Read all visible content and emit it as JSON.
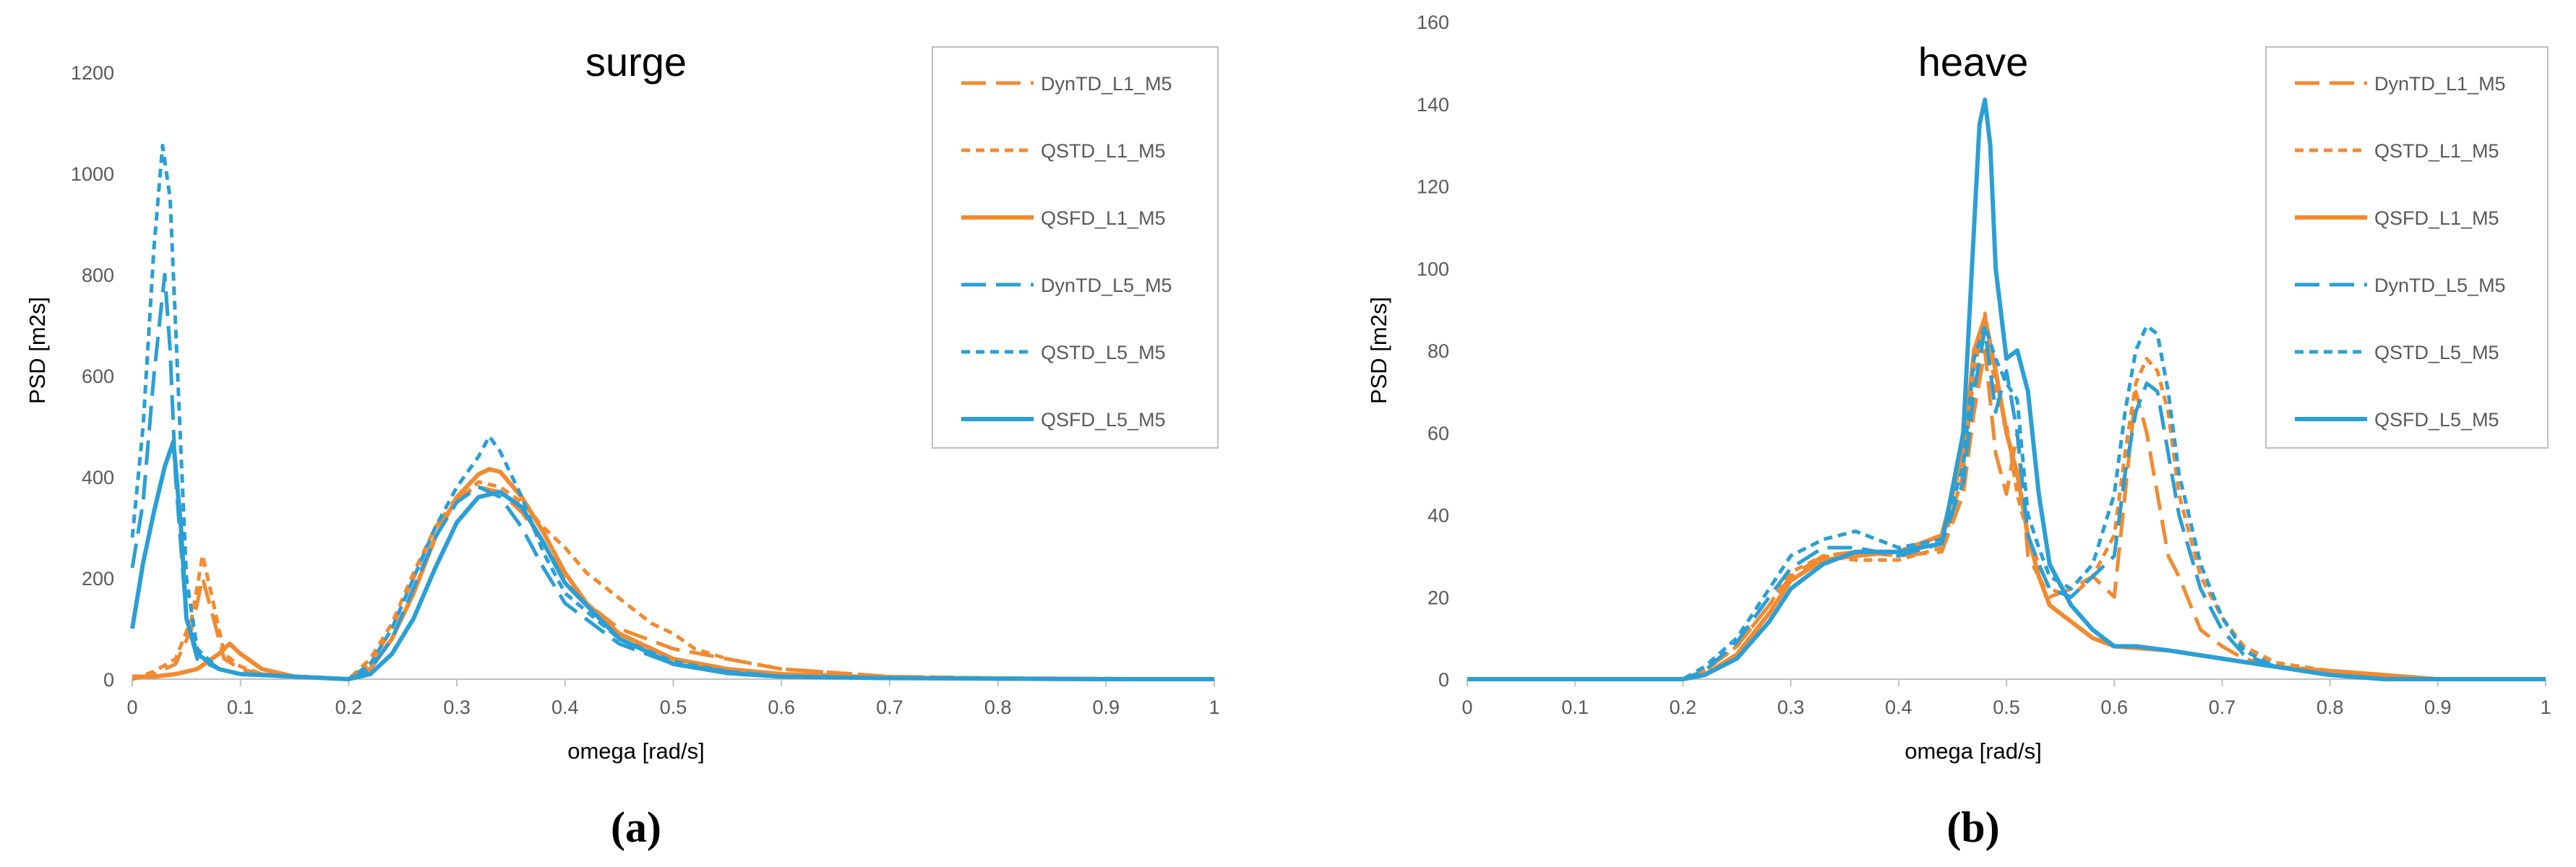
{
  "colors": {
    "orange": "#f28a30",
    "blue": "#2a9fd6",
    "axis": "#bfbfbf",
    "text": "#595959"
  },
  "chart_data": [
    {
      "type": "line",
      "panel_label": "(a)",
      "title": "surge",
      "xlabel": "omega [rad/s]",
      "ylabel": "PSD [m2s]",
      "xlim": [
        0,
        1
      ],
      "ylim": [
        0,
        1300
      ],
      "xticks": [
        0,
        0.1,
        0.2,
        0.3,
        0.4,
        0.5,
        0.6,
        0.7,
        0.8,
        0.9,
        1
      ],
      "xtick_labels": [
        "0",
        "0.1",
        "0.2",
        "0.3",
        "0.4",
        "0.5",
        "0.6",
        "0.7",
        "0.8",
        "0.9",
        "1"
      ],
      "yticks": [
        0,
        200,
        400,
        600,
        800,
        1000,
        1200
      ],
      "ytick_labels": [
        "0",
        "200",
        "400",
        "600",
        "800",
        "1000",
        "1200"
      ],
      "grid": false,
      "legend": "top-right",
      "series": [
        {
          "name": "DynTD_L1_M5",
          "color": "orange",
          "style": "longdash",
          "x": [
            0,
            0.02,
            0.04,
            0.055,
            0.065,
            0.075,
            0.085,
            0.1,
            0.12,
            0.15,
            0.2,
            0.22,
            0.24,
            0.26,
            0.28,
            0.3,
            0.32,
            0.34,
            0.36,
            0.38,
            0.4,
            0.42,
            0.45,
            0.5,
            0.55,
            0.6,
            0.7,
            0.8,
            0.9,
            1
          ],
          "y": [
            0,
            10,
            30,
            100,
            200,
            120,
            40,
            20,
            10,
            5,
            0,
            30,
            100,
            200,
            300,
            360,
            380,
            370,
            330,
            270,
            200,
            150,
            100,
            60,
            40,
            20,
            5,
            2,
            1,
            0
          ]
        },
        {
          "name": "QSTD_L1_M5",
          "color": "orange",
          "style": "shortdash",
          "x": [
            0,
            0.02,
            0.04,
            0.055,
            0.065,
            0.075,
            0.085,
            0.1,
            0.12,
            0.15,
            0.2,
            0.22,
            0.24,
            0.26,
            0.28,
            0.3,
            0.32,
            0.34,
            0.36,
            0.38,
            0.4,
            0.42,
            0.45,
            0.48,
            0.5,
            0.52,
            0.55,
            0.6,
            0.7,
            0.8,
            0.9,
            1
          ],
          "y": [
            0,
            15,
            40,
            120,
            245,
            150,
            50,
            25,
            10,
            5,
            0,
            40,
            110,
            210,
            300,
            350,
            390,
            380,
            350,
            300,
            260,
            210,
            160,
            110,
            90,
            60,
            40,
            20,
            5,
            2,
            1,
            0
          ]
        },
        {
          "name": "QSFD_L1_M5",
          "color": "orange",
          "style": "solid",
          "x": [
            0,
            0.02,
            0.04,
            0.06,
            0.08,
            0.09,
            0.1,
            0.12,
            0.15,
            0.2,
            0.22,
            0.24,
            0.26,
            0.28,
            0.3,
            0.32,
            0.33,
            0.34,
            0.36,
            0.38,
            0.4,
            0.42,
            0.45,
            0.5,
            0.55,
            0.6,
            0.7,
            0.8,
            0.9,
            1
          ],
          "y": [
            5,
            5,
            10,
            20,
            50,
            70,
            50,
            20,
            5,
            0,
            20,
            80,
            170,
            280,
            360,
            405,
            415,
            410,
            360,
            290,
            210,
            150,
            90,
            40,
            20,
            10,
            3,
            1,
            0,
            0
          ]
        },
        {
          "name": "DynTD_L5_M5",
          "color": "blue",
          "style": "longdash",
          "x": [
            0,
            0.01,
            0.02,
            0.03,
            0.035,
            0.04,
            0.05,
            0.06,
            0.08,
            0.1,
            0.15,
            0.2,
            0.22,
            0.24,
            0.26,
            0.28,
            0.3,
            0.32,
            0.34,
            0.36,
            0.38,
            0.4,
            0.45,
            0.5,
            0.55,
            0.6,
            0.7,
            0.8,
            0.9,
            1
          ],
          "y": [
            220,
            350,
            600,
            800,
            650,
            400,
            120,
            40,
            20,
            10,
            5,
            0,
            20,
            80,
            180,
            280,
            350,
            380,
            360,
            300,
            220,
            150,
            70,
            30,
            15,
            5,
            2,
            1,
            0,
            0
          ]
        },
        {
          "name": "QSTD_L5_M5",
          "color": "blue",
          "style": "shortdash",
          "x": [
            0,
            0.01,
            0.02,
            0.028,
            0.035,
            0.042,
            0.05,
            0.06,
            0.08,
            0.1,
            0.15,
            0.2,
            0.22,
            0.24,
            0.26,
            0.28,
            0.3,
            0.32,
            0.33,
            0.34,
            0.36,
            0.38,
            0.4,
            0.45,
            0.5,
            0.55,
            0.6,
            0.7,
            0.8,
            0.9,
            1
          ],
          "y": [
            280,
            500,
            850,
            1055,
            950,
            600,
            200,
            60,
            20,
            10,
            5,
            0,
            30,
            100,
            200,
            300,
            380,
            440,
            480,
            450,
            360,
            250,
            170,
            80,
            35,
            15,
            5,
            2,
            1,
            0,
            0
          ]
        },
        {
          "name": "QSFD_L5_M5",
          "color": "blue",
          "style": "solid",
          "x": [
            0,
            0.01,
            0.02,
            0.03,
            0.038,
            0.045,
            0.05,
            0.06,
            0.08,
            0.1,
            0.15,
            0.2,
            0.22,
            0.24,
            0.26,
            0.28,
            0.3,
            0.32,
            0.34,
            0.36,
            0.38,
            0.4,
            0.45,
            0.5,
            0.55,
            0.6,
            0.7,
            0.8,
            0.9,
            1
          ],
          "y": [
            100,
            230,
            330,
            420,
            470,
            300,
            120,
            50,
            20,
            10,
            5,
            0,
            10,
            50,
            120,
            220,
            310,
            360,
            370,
            340,
            270,
            190,
            80,
            30,
            12,
            5,
            2,
            1,
            0,
            0
          ]
        }
      ]
    },
    {
      "type": "line",
      "panel_label": "(b)",
      "title": "heave",
      "xlabel": "omega [rad/s]",
      "ylabel": "PSD [m2s]",
      "xlim": [
        0,
        1
      ],
      "ylim": [
        0,
        160
      ],
      "xticks": [
        0,
        0.1,
        0.2,
        0.3,
        0.4,
        0.5,
        0.6,
        0.7,
        0.8,
        0.9,
        1
      ],
      "xtick_labels": [
        "0",
        "0.1",
        "0.2",
        "0.3",
        "0.4",
        "0.5",
        "0.6",
        "0.7",
        "0.8",
        "0.9",
        "1"
      ],
      "yticks": [
        0,
        20,
        40,
        60,
        80,
        100,
        120,
        140,
        160
      ],
      "ytick_labels": [
        "0",
        "20",
        "40",
        "60",
        "80",
        "100",
        "120",
        "140",
        "160"
      ],
      "grid": false,
      "legend": "top-right",
      "series": [
        {
          "name": "DynTD_L1_M5",
          "color": "orange",
          "style": "longdash",
          "x": [
            0,
            0.2,
            0.22,
            0.25,
            0.28,
            0.3,
            0.33,
            0.36,
            0.4,
            0.44,
            0.46,
            0.47,
            0.48,
            0.49,
            0.5,
            0.51,
            0.52,
            0.53,
            0.54,
            0.56,
            0.58,
            0.6,
            0.61,
            0.62,
            0.63,
            0.64,
            0.65,
            0.66,
            0.68,
            0.7,
            0.72,
            0.75,
            0.8,
            0.85,
            0.9,
            1
          ],
          "y": [
            0,
            0,
            2,
            8,
            18,
            25,
            30,
            31,
            30,
            31,
            45,
            65,
            80,
            55,
            45,
            60,
            30,
            25,
            20,
            22,
            25,
            20,
            45,
            70,
            60,
            45,
            30,
            25,
            12,
            8,
            5,
            3,
            1,
            0,
            0,
            0
          ]
        },
        {
          "name": "QSTD_L1_M5",
          "color": "orange",
          "style": "shortdash",
          "x": [
            0,
            0.2,
            0.22,
            0.25,
            0.28,
            0.3,
            0.33,
            0.36,
            0.4,
            0.44,
            0.46,
            0.47,
            0.48,
            0.49,
            0.5,
            0.51,
            0.52,
            0.53,
            0.54,
            0.56,
            0.58,
            0.6,
            0.61,
            0.62,
            0.63,
            0.64,
            0.65,
            0.66,
            0.68,
            0.7,
            0.72,
            0.75,
            0.8,
            0.85,
            0.9,
            1
          ],
          "y": [
            0,
            0,
            2,
            8,
            18,
            26,
            30,
            29,
            29,
            32,
            50,
            75,
            89,
            70,
            62,
            45,
            35,
            28,
            22,
            20,
            25,
            35,
            55,
            72,
            78,
            75,
            65,
            45,
            25,
            15,
            8,
            4,
            2,
            1,
            0,
            0
          ]
        },
        {
          "name": "QSFD_L1_M5",
          "color": "orange",
          "style": "solid",
          "x": [
            0,
            0.2,
            0.22,
            0.25,
            0.28,
            0.3,
            0.33,
            0.36,
            0.4,
            0.44,
            0.46,
            0.47,
            0.48,
            0.49,
            0.5,
            0.51,
            0.52,
            0.53,
            0.54,
            0.56,
            0.58,
            0.6,
            0.65,
            0.7,
            0.75,
            0.8,
            0.85,
            0.9,
            1
          ],
          "y": [
            0,
            0,
            1,
            6,
            16,
            24,
            29,
            30,
            31,
            35,
            55,
            80,
            88,
            75,
            60,
            50,
            35,
            25,
            18,
            14,
            10,
            8,
            7,
            5,
            3,
            2,
            1,
            0,
            0
          ]
        },
        {
          "name": "DynTD_L5_M5",
          "color": "blue",
          "style": "longdash",
          "x": [
            0,
            0.2,
            0.22,
            0.25,
            0.28,
            0.3,
            0.33,
            0.36,
            0.4,
            0.44,
            0.46,
            0.47,
            0.48,
            0.49,
            0.5,
            0.51,
            0.52,
            0.53,
            0.54,
            0.56,
            0.58,
            0.6,
            0.61,
            0.62,
            0.63,
            0.64,
            0.65,
            0.66,
            0.68,
            0.7,
            0.72,
            0.75,
            0.8,
            0.85,
            0.9,
            1
          ],
          "y": [
            0,
            0,
            2,
            9,
            20,
            27,
            32,
            32,
            30,
            33,
            48,
            70,
            85,
            65,
            75,
            60,
            35,
            28,
            22,
            20,
            25,
            30,
            50,
            65,
            72,
            70,
            55,
            40,
            22,
            12,
            6,
            3,
            1,
            0,
            0,
            0
          ]
        },
        {
          "name": "QSTD_L5_M5",
          "color": "blue",
          "style": "shortdash",
          "x": [
            0,
            0.2,
            0.22,
            0.25,
            0.28,
            0.3,
            0.33,
            0.36,
            0.4,
            0.44,
            0.46,
            0.47,
            0.48,
            0.49,
            0.5,
            0.51,
            0.52,
            0.53,
            0.54,
            0.56,
            0.58,
            0.6,
            0.61,
            0.62,
            0.63,
            0.64,
            0.65,
            0.66,
            0.68,
            0.7,
            0.72,
            0.75,
            0.8,
            0.85,
            0.9,
            1
          ],
          "y": [
            0,
            0,
            3,
            10,
            22,
            30,
            34,
            36,
            32,
            34,
            52,
            78,
            86,
            78,
            72,
            68,
            40,
            32,
            25,
            22,
            28,
            45,
            65,
            80,
            86,
            84,
            70,
            50,
            28,
            15,
            7,
            3,
            1,
            0,
            0,
            0
          ]
        },
        {
          "name": "QSFD_L5_M5",
          "color": "blue",
          "style": "solid",
          "x": [
            0,
            0.2,
            0.22,
            0.25,
            0.28,
            0.3,
            0.33,
            0.36,
            0.4,
            0.44,
            0.46,
            0.47,
            0.475,
            0.48,
            0.485,
            0.49,
            0.5,
            0.51,
            0.52,
            0.53,
            0.54,
            0.56,
            0.58,
            0.6,
            0.62,
            0.65,
            0.7,
            0.75,
            0.8,
            0.85,
            0.9,
            1
          ],
          "y": [
            0,
            0,
            1,
            5,
            14,
            22,
            28,
            31,
            31,
            33,
            60,
            110,
            135,
            141,
            130,
            100,
            78,
            80,
            70,
            45,
            28,
            18,
            12,
            8,
            8,
            7,
            5,
            3,
            1,
            0,
            0,
            0
          ]
        }
      ]
    }
  ]
}
